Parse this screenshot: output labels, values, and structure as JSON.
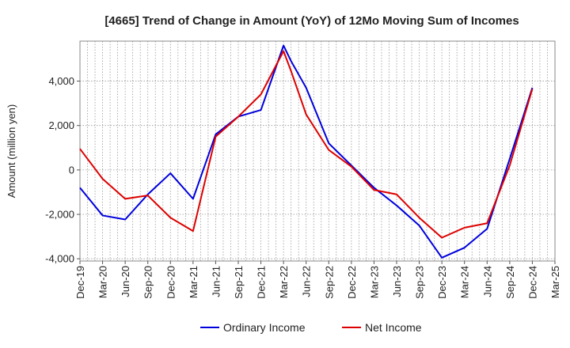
{
  "chart_data": {
    "type": "line",
    "title": "[4665]  Trend of Change in Amount (YoY) of 12Mo Moving Sum of Incomes",
    "xlabel": "",
    "ylabel": "Amount (million yen)",
    "ylim": [
      -4100,
      5800
    ],
    "yticks": [
      -4000,
      -2000,
      0,
      2000,
      4000
    ],
    "ytick_labels": [
      "-4,000",
      "-2,000",
      "0",
      "2,000",
      "4,000"
    ],
    "x_labels": [
      "Dec-19",
      "Mar-20",
      "Jun-20",
      "Sep-20",
      "Dec-20",
      "Mar-21",
      "Jun-21",
      "Sep-21",
      "Dec-21",
      "Mar-22",
      "Jun-22",
      "Sep-22",
      "Dec-22",
      "Mar-23",
      "Jun-23",
      "Sep-23",
      "Dec-23",
      "Mar-24",
      "Jun-24",
      "Sep-24",
      "Dec-24",
      "Mar-25"
    ],
    "grid": true,
    "legend_position": "bottom",
    "series": [
      {
        "name": "Ordinary Income",
        "color": "#0000dd",
        "points": [
          [
            0,
            -800
          ],
          [
            3,
            -2050
          ],
          [
            6,
            -2230
          ],
          [
            9,
            -1100
          ],
          [
            12,
            -150
          ],
          [
            15,
            -1300
          ],
          [
            18,
            1600
          ],
          [
            21,
            2400
          ],
          [
            24,
            2700
          ],
          [
            27,
            5600
          ],
          [
            28,
            4900
          ],
          [
            30,
            3700
          ],
          [
            33,
            1200
          ],
          [
            36,
            200
          ],
          [
            39,
            -800
          ],
          [
            42,
            -1600
          ],
          [
            45,
            -2500
          ],
          [
            48,
            -3950
          ],
          [
            51,
            -3500
          ],
          [
            54,
            -2650
          ],
          [
            57,
            500
          ],
          [
            60,
            3700
          ]
        ]
      },
      {
        "name": "Net Income",
        "color": "#dd0000",
        "points": [
          [
            0,
            950
          ],
          [
            3,
            -400
          ],
          [
            6,
            -1300
          ],
          [
            9,
            -1150
          ],
          [
            12,
            -2150
          ],
          [
            15,
            -2750
          ],
          [
            18,
            1500
          ],
          [
            21,
            2400
          ],
          [
            24,
            3400
          ],
          [
            27,
            5350
          ],
          [
            28,
            4450
          ],
          [
            30,
            2500
          ],
          [
            33,
            900
          ],
          [
            36,
            150
          ],
          [
            39,
            -900
          ],
          [
            42,
            -1100
          ],
          [
            45,
            -2150
          ],
          [
            48,
            -3050
          ],
          [
            51,
            -2600
          ],
          [
            54,
            -2400
          ],
          [
            57,
            200
          ],
          [
            60,
            3650
          ]
        ]
      }
    ]
  }
}
